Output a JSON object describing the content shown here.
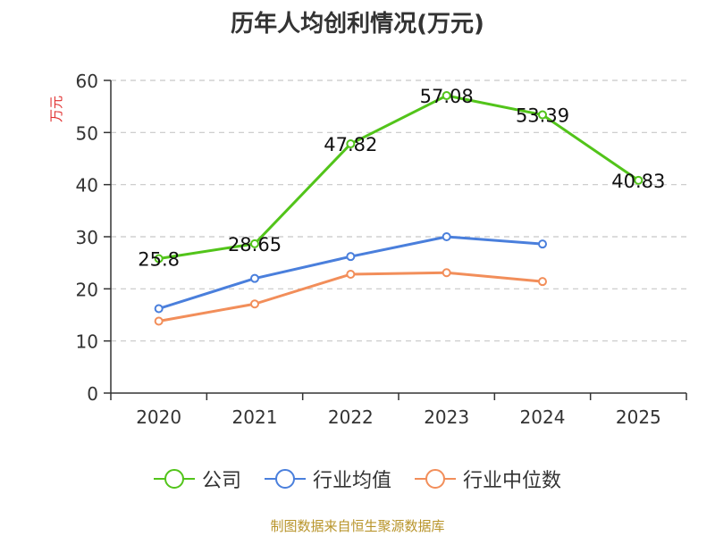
{
  "chart_data": {
    "type": "line",
    "title": "历年人均创利情况(万元)",
    "ylabel": "万元",
    "xlabel": "",
    "ylim": [
      0,
      60
    ],
    "yticks": [
      0,
      10,
      20,
      30,
      40,
      50,
      60
    ],
    "grid": true,
    "legend_position": "bottom",
    "categories": [
      "2020",
      "2021",
      "2022",
      "2023",
      "2024",
      "2025"
    ],
    "series": [
      {
        "name": "公司",
        "color": "#52c41a",
        "values": [
          25.8,
          28.65,
          47.82,
          57.08,
          53.39,
          40.83
        ],
        "labels": [
          "25.8",
          "28.65",
          "47.82",
          "57.08",
          "53.39",
          "40.83"
        ],
        "show_labels": true
      },
      {
        "name": "行业均值",
        "color": "#4a7fdc",
        "values": [
          16.2,
          22.0,
          26.2,
          30.0,
          28.6,
          null
        ],
        "show_labels": false
      },
      {
        "name": "行业中位数",
        "color": "#f28e5a",
        "values": [
          13.8,
          17.1,
          22.8,
          23.1,
          21.4,
          null
        ],
        "show_labels": false
      }
    ]
  },
  "source": "制图数据来自恒生聚源数据库"
}
